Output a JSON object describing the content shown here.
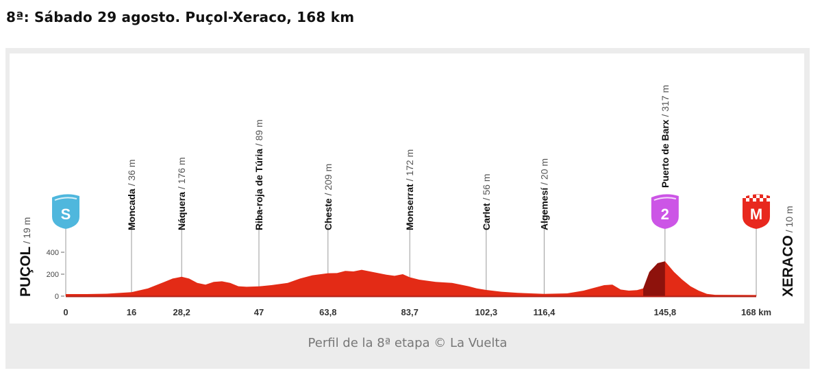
{
  "page": {
    "heading": "8ª: Sábado 29 agosto. Puçol-Xeraco, 168 km",
    "caption": "Perfil de la 8ª etapa © La Vuelta"
  },
  "chart_data": {
    "type": "area",
    "x_unit": "km",
    "y_unit": "m",
    "xlim": [
      0,
      168
    ],
    "ylim": [
      0,
      400
    ],
    "yticks": [
      0,
      200,
      400
    ],
    "xticks": [
      {
        "value": 0,
        "label": "0"
      },
      {
        "value": 16,
        "label": "16"
      },
      {
        "value": 28.2,
        "label": "28,2"
      },
      {
        "value": 47,
        "label": "47"
      },
      {
        "value": 63.8,
        "label": "63,8"
      },
      {
        "value": 83.7,
        "label": "83,7"
      },
      {
        "value": 102.3,
        "label": "102,3"
      },
      {
        "value": 116.4,
        "label": "116,4"
      },
      {
        "value": 145.8,
        "label": "145,8"
      },
      {
        "value": 168,
        "label": "168 km"
      }
    ],
    "start": {
      "name": "PUÇOL",
      "altitude_label": "19 m",
      "badge": "S",
      "badge_color": "#4fb7dd"
    },
    "finish": {
      "name": "XERACO",
      "altitude_label": "10 m",
      "badge": "M",
      "badge_color": "#e8281e"
    },
    "climb": {
      "badge": "2",
      "badge_color": "#cc55e6",
      "start_km": 140.5,
      "top_km": 145.8
    },
    "waypoints": [
      {
        "name": "Moncada",
        "altitude_label": "36 m",
        "km": 16
      },
      {
        "name": "Náquera",
        "altitude_label": "176 m",
        "km": 28.2
      },
      {
        "name": "Riba-roja de Túria",
        "altitude_label": "89 m",
        "km": 47
      },
      {
        "name": "Cheste",
        "altitude_label": "209 m",
        "km": 63.8
      },
      {
        "name": "Monserrat",
        "altitude_label": "172 m",
        "km": 83.7
      },
      {
        "name": "Carlet",
        "altitude_label": "56 m",
        "km": 102.3
      },
      {
        "name": "Algemesí",
        "altitude_label": "20 m",
        "km": 116.4
      },
      {
        "name": "Puerto de Barx",
        "altitude_label": "317 m",
        "km": 145.8
      }
    ],
    "profile": [
      [
        0,
        19
      ],
      [
        5,
        19
      ],
      [
        10,
        22
      ],
      [
        16,
        36
      ],
      [
        20,
        70
      ],
      [
        24,
        130
      ],
      [
        26,
        160
      ],
      [
        28.2,
        176
      ],
      [
        30,
        160
      ],
      [
        32,
        120
      ],
      [
        34,
        105
      ],
      [
        36,
        130
      ],
      [
        38,
        135
      ],
      [
        40,
        120
      ],
      [
        42,
        90
      ],
      [
        44,
        85
      ],
      [
        47,
        89
      ],
      [
        50,
        100
      ],
      [
        54,
        120
      ],
      [
        57,
        160
      ],
      [
        60,
        190
      ],
      [
        63.8,
        209
      ],
      [
        66,
        210
      ],
      [
        68,
        230
      ],
      [
        70,
        225
      ],
      [
        72,
        240
      ],
      [
        74,
        225
      ],
      [
        76,
        210
      ],
      [
        78,
        195
      ],
      [
        80,
        185
      ],
      [
        82,
        200
      ],
      [
        83.7,
        172
      ],
      [
        86,
        150
      ],
      [
        90,
        130
      ],
      [
        94,
        120
      ],
      [
        98,
        90
      ],
      [
        100,
        70
      ],
      [
        102.3,
        56
      ],
      [
        106,
        40
      ],
      [
        110,
        30
      ],
      [
        116.4,
        20
      ],
      [
        122,
        25
      ],
      [
        126,
        50
      ],
      [
        128,
        70
      ],
      [
        131,
        100
      ],
      [
        133,
        105
      ],
      [
        135,
        60
      ],
      [
        137,
        50
      ],
      [
        139,
        55
      ],
      [
        140.5,
        70
      ],
      [
        142,
        220
      ],
      [
        144,
        300
      ],
      [
        145.8,
        317
      ],
      [
        148,
        220
      ],
      [
        150,
        150
      ],
      [
        152,
        90
      ],
      [
        154,
        50
      ],
      [
        156,
        20
      ],
      [
        158,
        12
      ],
      [
        168,
        10
      ]
    ]
  }
}
